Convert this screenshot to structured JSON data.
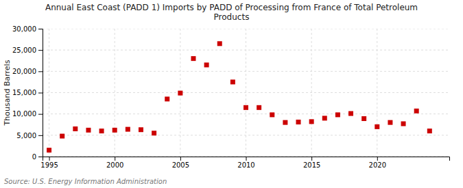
{
  "chart_data": {
    "type": "scatter",
    "title": "Annual East Coast (PADD 1) Imports by PADD of Processing from France of Total Petroleum\nProducts",
    "ylabel": "Thousand Barrels",
    "source": "Source: U.S. Energy Information Administration",
    "x": [
      1995,
      1996,
      1997,
      1998,
      1999,
      2000,
      2001,
      2002,
      2003,
      2004,
      2005,
      2006,
      2007,
      2008,
      2009,
      2010,
      2011,
      2012,
      2013,
      2014,
      2015,
      2016,
      2017,
      2018,
      2019,
      2020,
      2021,
      2022,
      2023,
      2024
    ],
    "values": [
      1500,
      4800,
      6500,
      6200,
      6000,
      6200,
      6400,
      6300,
      5500,
      13500,
      14900,
      23000,
      21500,
      26500,
      17500,
      11500,
      11500,
      9800,
      8000,
      8100,
      8200,
      9000,
      9800,
      10100,
      8900,
      7000,
      8000,
      7700,
      10700,
      6000
    ],
    "color": "#cc0000",
    "marker": "square",
    "xlim": [
      1994.5,
      2025.5
    ],
    "ylim": [
      0,
      30000
    ],
    "xticks": [
      1995,
      2000,
      2005,
      2010,
      2015,
      2020
    ],
    "yticks": [
      0,
      {
        "value": 5000,
        "label": "5,000"
      },
      {
        "value": 10000,
        "label": "10,000"
      },
      {
        "value": 15000,
        "label": "15,000"
      },
      {
        "value": 20000,
        "label": "20,000"
      },
      {
        "value": 25000,
        "label": "25,000"
      },
      {
        "value": 30000,
        "label": "30,000"
      }
    ],
    "grid": true
  }
}
